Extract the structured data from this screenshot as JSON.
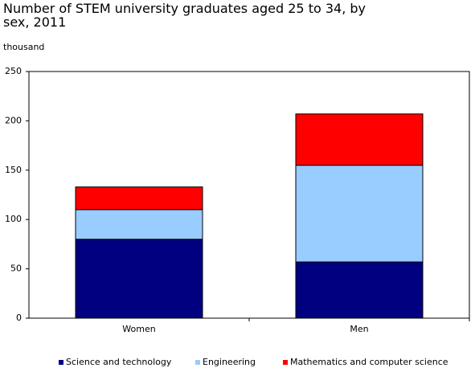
{
  "chart_data": {
    "type": "stacked_bar",
    "title": "Number of STEM university graduates aged 25 to 34, by sex, 2011",
    "y_label": "thousand",
    "categories": [
      "Women",
      "Men"
    ],
    "series": [
      {
        "name": "Science and technology",
        "color": "#000080",
        "values": [
          80,
          57
        ]
      },
      {
        "name": "Engineering",
        "color": "#99ccff",
        "values": [
          30,
          98
        ]
      },
      {
        "name": "Mathematics and computer science",
        "color": "#ff0000",
        "values": [
          23,
          52
        ]
      }
    ],
    "ylim": [
      0,
      250
    ],
    "yticks": [
      0,
      50,
      100,
      150,
      200,
      250
    ],
    "grid": false
  }
}
